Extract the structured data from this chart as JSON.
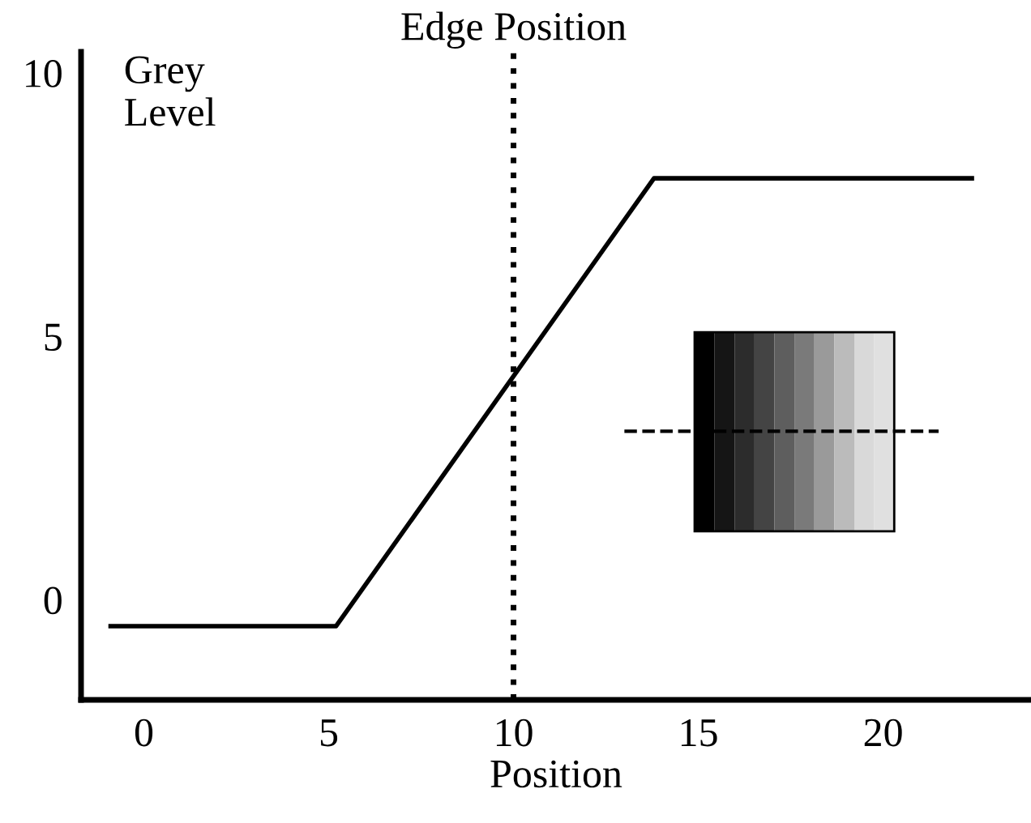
{
  "chart_data": {
    "type": "line",
    "xlabel": "Position",
    "ylabel": "Grey Level",
    "x": [
      -0.9,
      5.2,
      13.8,
      22.4
    ],
    "series": [
      {
        "color": "#000000",
        "values": [
          -0.5,
          -0.5,
          8.0,
          8.0
        ]
      }
    ],
    "xlim": [
      -1.7,
      24
    ],
    "ylim": [
      -1.9,
      10.4
    ],
    "xticks": [
      0,
      5,
      10,
      15,
      20
    ],
    "yticks": [
      0,
      5,
      10
    ],
    "ref_lines": [
      {
        "axis": "x",
        "value": 10,
        "label": "Edge Position",
        "color": "#000000",
        "line_style": "dotted"
      }
    ],
    "grid": false,
    "legend": false,
    "marker": "none",
    "line_style": "solid"
  }
}
